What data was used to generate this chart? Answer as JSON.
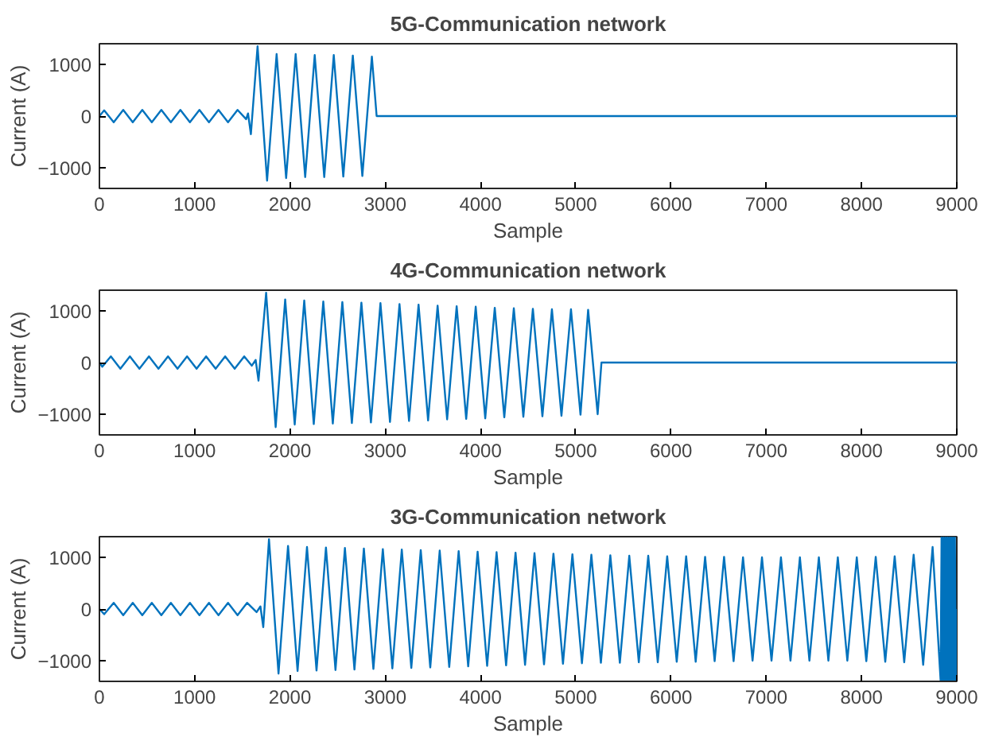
{
  "chart_data": [
    {
      "type": "line",
      "title": "5G-Communication network",
      "xlabel": "Sample",
      "ylabel": "Current (A)",
      "color": "#0072bd",
      "xlim": [
        0,
        9000
      ],
      "ylim": [
        -1400,
        1400
      ],
      "xticks": [
        0,
        1000,
        2000,
        3000,
        4000,
        5000,
        6000,
        7000,
        8000,
        9000
      ],
      "yticks": [
        -1000,
        0,
        1000
      ],
      "x": [
        0,
        50,
        150,
        250,
        350,
        450,
        550,
        650,
        750,
        850,
        950,
        1050,
        1150,
        1250,
        1350,
        1450,
        1540,
        1560,
        1590,
        1660,
        1760,
        1860,
        1960,
        2060,
        2160,
        2260,
        2360,
        2460,
        2560,
        2660,
        2760,
        2860,
        2910,
        9000
      ],
      "values": [
        0,
        110,
        -120,
        120,
        -120,
        120,
        -120,
        120,
        -120,
        120,
        -120,
        120,
        -120,
        120,
        -120,
        120,
        -60,
        50,
        -350,
        1350,
        -1250,
        1200,
        -1200,
        1200,
        -1180,
        1180,
        -1180,
        1180,
        -1170,
        1170,
        -1160,
        1150,
        0,
        0
      ]
    },
    {
      "type": "line",
      "title": "4G-Communication network",
      "xlabel": "Sample",
      "ylabel": "Current (A)",
      "color": "#0072bd",
      "xlim": [
        0,
        9000
      ],
      "ylim": [
        -1400,
        1400
      ],
      "xticks": [
        0,
        1000,
        2000,
        3000,
        4000,
        5000,
        6000,
        7000,
        8000,
        9000
      ],
      "yticks": [
        -1000,
        0,
        1000
      ],
      "x": [
        0,
        30,
        120,
        220,
        320,
        420,
        520,
        620,
        720,
        820,
        920,
        1020,
        1120,
        1220,
        1320,
        1420,
        1520,
        1600,
        1640,
        1670,
        1750,
        1850,
        1950,
        2050,
        2150,
        2250,
        2350,
        2450,
        2550,
        2650,
        2750,
        2850,
        2950,
        3050,
        3150,
        3250,
        3350,
        3450,
        3550,
        3650,
        3750,
        3850,
        3950,
        4050,
        4150,
        4250,
        4350,
        4450,
        4550,
        4650,
        4750,
        4850,
        4950,
        5050,
        5130,
        5230,
        5270,
        9000
      ],
      "values": [
        0,
        -80,
        120,
        -120,
        120,
        -120,
        120,
        -120,
        120,
        -120,
        120,
        -120,
        120,
        -120,
        120,
        -120,
        120,
        -60,
        50,
        -350,
        1350,
        -1250,
        1220,
        -1200,
        1200,
        -1190,
        1180,
        -1180,
        1170,
        -1170,
        1160,
        -1160,
        1150,
        -1150,
        1130,
        -1130,
        1120,
        -1120,
        1100,
        -1100,
        1090,
        -1090,
        1080,
        -1080,
        1060,
        -1060,
        1050,
        -1050,
        1040,
        -1040,
        1030,
        -1030,
        1030,
        -1010,
        1020,
        -1000,
        0,
        0
      ]
    },
    {
      "type": "line",
      "title": "3G-Communication network",
      "xlabel": "Sample",
      "ylabel": "Current (A)",
      "color": "#0072bd",
      "xlim": [
        0,
        9000
      ],
      "ylim": [
        -1400,
        1400
      ],
      "xticks": [
        0,
        1000,
        2000,
        3000,
        4000,
        5000,
        6000,
        7000,
        8000,
        9000
      ],
      "yticks": [
        -1000,
        0,
        1000
      ],
      "x": [
        0,
        50,
        150,
        250,
        350,
        450,
        550,
        650,
        750,
        850,
        950,
        1050,
        1150,
        1250,
        1350,
        1450,
        1550,
        1650,
        1690,
        1720,
        1780,
        1880,
        1980,
        2080,
        2179,
        2279,
        2378,
        2478,
        2577,
        2677,
        2776,
        2876,
        2975,
        3075,
        3174,
        3274,
        3373,
        3473,
        3572,
        3672,
        3771,
        3871,
        3970,
        4070,
        4169,
        4269,
        4368,
        4468,
        4567,
        4667,
        4766,
        4866,
        4965,
        5065,
        5164,
        5264,
        5363,
        5463,
        5562,
        5662,
        5761,
        5861,
        5960,
        6060,
        6159,
        6259,
        6358,
        6458,
        6557,
        6657,
        6756,
        6856,
        6955,
        7055,
        7154,
        7254,
        7353,
        7453,
        7552,
        7652,
        7751,
        7851,
        7950,
        8050,
        8149,
        8249,
        8348,
        8448,
        8547,
        8647,
        8746,
        8830,
        8840,
        8850,
        8860,
        8870,
        8880,
        8890,
        8900,
        8910,
        8920,
        8930,
        8940,
        8950,
        8960,
        8970,
        8980,
        8990,
        9000
      ],
      "values": [
        0,
        -100,
        120,
        -120,
        120,
        -120,
        120,
        -120,
        120,
        -120,
        120,
        -120,
        120,
        -120,
        120,
        -120,
        120,
        -60,
        50,
        -350,
        1350,
        -1250,
        1220,
        -1200,
        1200,
        -1190,
        1190,
        -1180,
        1180,
        -1170,
        1170,
        -1160,
        1160,
        -1150,
        1150,
        -1140,
        1140,
        -1130,
        1130,
        -1120,
        1120,
        -1110,
        1110,
        -1100,
        1100,
        -1090,
        1090,
        -1080,
        1080,
        -1070,
        1070,
        -1060,
        1060,
        -1050,
        1050,
        -1040,
        1040,
        -1040,
        1030,
        -1030,
        1030,
        -1030,
        1020,
        -1020,
        1020,
        -1020,
        1010,
        -1010,
        1010,
        -1010,
        1000,
        -1000,
        1000,
        -1000,
        1000,
        -1000,
        1000,
        -1000,
        1000,
        -1000,
        1000,
        -1000,
        1000,
        -1010,
        1010,
        -1020,
        1020,
        -1030,
        1050,
        -1080,
        1200,
        -1380,
        1380,
        -1380,
        1380,
        -1380,
        1380,
        -1380,
        1380,
        -1380,
        1380,
        -1380,
        1380,
        -1380,
        1380,
        -1380,
        1380,
        -1380,
        0
      ]
    }
  ]
}
